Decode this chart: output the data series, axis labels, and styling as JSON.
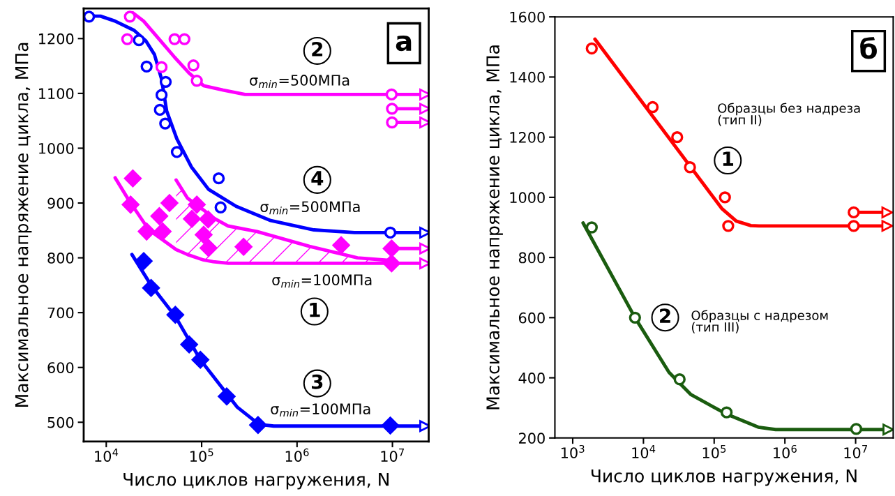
{
  "chart_data": [
    {
      "type": "line",
      "title": "а",
      "xlabel": "Число циклов нагружения, N",
      "ylabel": "Максимальное напряжение цикла, МПа",
      "log": "x",
      "xlim": [
        5800,
        24000000
      ],
      "ylim": [
        465,
        1255
      ],
      "xticks": [
        {
          "value": 10000,
          "label": "10$^{4}$"
        },
        {
          "value": 100000,
          "label": "10$^{5}$"
        },
        {
          "value": 1000000,
          "label": "10$^{6}$"
        },
        {
          "value": 10000000,
          "label": "10$^{7}$"
        }
      ],
      "yticks": [
        500,
        600,
        700,
        800,
        900,
        1000,
        1100,
        1200
      ],
      "series": [
        {
          "type": "line",
          "color": "#0000ff",
          "x": [
            6600,
            8700,
            12300,
            19600,
            26000,
            32000,
            38000,
            43000,
            55000,
            78000,
            118000,
            230000,
            530000,
            1500000,
            4000000,
            22000000
          ],
          "values": [
            1241,
            1241,
            1232,
            1215,
            1196,
            1171,
            1126,
            1068,
            1017,
            966,
            925,
            894,
            868,
            851,
            846,
            846
          ]
        },
        {
          "type": "scatter",
          "marker": "circle",
          "color": "#0000ff",
          "x": [
            6600,
            22000,
            26500,
            42000,
            38000,
            36500,
            41500,
            55000,
            151000,
            158000,
            9500000
          ],
          "values": [
            1240,
            1197,
            1149,
            1121,
            1097,
            1070,
            1045,
            993,
            945,
            892,
            846
          ]
        },
        {
          "type": "line",
          "color": "#ff00ff",
          "x": [
            19000,
            24600,
            37000,
            52000,
            74000,
            105000,
            168000,
            285000,
            9700000,
            22000000
          ],
          "values": [
            1247,
            1232,
            1196,
            1166,
            1137,
            1114,
            1106,
            1098,
            1098,
            1098
          ]
        },
        {
          "type": "line",
          "color": "#ff00ff",
          "x": [
            9900000,
            22000000
          ],
          "values": [
            1072,
            1072
          ]
        },
        {
          "type": "line",
          "color": "#ff00ff",
          "x": [
            9900000,
            22000000
          ],
          "values": [
            1047,
            1047
          ]
        },
        {
          "type": "scatter",
          "marker": "circle",
          "color": "#ff00ff",
          "x": [
            17700,
            16600,
            52000,
            66000,
            38000,
            82000,
            89000,
            9800000,
            9900000,
            9900000
          ],
          "values": [
            1240,
            1199,
            1199,
            1199,
            1148,
            1151,
            1123,
            1098,
            1072,
            1047
          ]
        },
        {
          "color": "#ff00ff",
          "x": [
            54000,
            71000,
            105000,
            132000,
            190000,
            380000,
            1350000,
            4300000,
            9800000
          ],
          "values": [
            942,
            909,
            887,
            873,
            858,
            848,
            821,
            800,
            795
          ]
        },
        {
          "color": "#ff00ff",
          "x": [
            12400,
            17400,
            28000,
            54000,
            71000,
            105000,
            132000,
            190000,
            380000,
            1350000,
            4300000,
            9800000,
            22000000
          ],
          "values": [
            946,
            904,
            851,
            815,
            806,
            796,
            793,
            790,
            790,
            790,
            790,
            790,
            790
          ]
        },
        {
          "type": "line",
          "color": "#ff00ff",
          "x": [
            9800000,
            22000000
          ],
          "values": [
            817,
            817
          ]
        },
        {
          "type": "scatter",
          "marker": "diamond",
          "color": "#ff00ff",
          "x": [
            19000,
            18000,
            26500,
            36000,
            39000,
            46000,
            79000,
            89000,
            117000,
            105000,
            118000,
            275000,
            2900000,
            9800000,
            9800000
          ],
          "values": [
            945,
            897,
            848,
            876,
            848,
            900,
            871,
            897,
            870,
            842,
            818,
            820,
            823,
            817,
            790
          ]
        },
        {
          "type": "line",
          "color": "#0000ff",
          "x": [
            18600,
            29500,
            53000,
            97000,
            235000,
            400000,
            570000,
            9500000,
            22000000
          ],
          "values": [
            806,
            750,
            693,
            614,
            528,
            496,
            493,
            493,
            493
          ]
        },
        {
          "type": "scatter",
          "marker": "diamond",
          "color": "#0000ff",
          "x": [
            24700,
            29500,
            53000,
            74000,
            97000,
            183000,
            390000,
            9500000
          ],
          "values": [
            794,
            745,
            696,
            642,
            614,
            547,
            495,
            494
          ]
        }
      ],
      "annotations": [
        "2",
        "σ$_{min}$=500МПа",
        "4",
        "σ$_{min}$=500МПа",
        "σ$_{min}$=100МПа",
        "1",
        "3",
        "σ$_{min}$=100МПа"
      ]
    },
    {
      "type": "line",
      "title": "б",
      "xlabel": "Число циклов нагружения, N",
      "ylabel": "Максимальное напряжение цикла, МПа",
      "log": "x",
      "xlim": [
        560,
        34000000
      ],
      "ylim": [
        200,
        1600
      ],
      "xticks": [
        {
          "value": 1000,
          "label": "10$^{3}$"
        },
        {
          "value": 10000,
          "label": "10$^{4}$"
        },
        {
          "value": 100000,
          "label": "10$^{5}$"
        },
        {
          "value": 1000000,
          "label": "10$^{6}$"
        },
        {
          "value": 10000000,
          "label": "10$^{7}$"
        }
      ],
      "yticks": [
        200,
        400,
        600,
        800,
        1000,
        1200,
        1400,
        1600
      ],
      "series": [
        {
          "type": "line",
          "color": "#ff0000",
          "x": [
            2060,
            128000,
            205000,
            330000,
            430000,
            9400000,
            28000000
          ],
          "values": [
            1526,
            963,
            921,
            906,
            905,
            905,
            905
          ]
        },
        {
          "type": "line",
          "color": "#ff0000",
          "x": [
            9400000,
            28000000
          ],
          "values": [
            950,
            950
          ]
        },
        {
          "type": "scatter",
          "marker": "circle",
          "color": "#ff0000",
          "x": [
            1860,
            13500,
            30000,
            45500,
            142000,
            158000,
            9400000,
            9400000
          ],
          "values": [
            1495,
            1300,
            1200,
            1100,
            1000,
            905,
            950,
            905
          ]
        },
        {
          "type": "line",
          "color": "#1a5c0f",
          "x": [
            1400,
            7600,
            23000,
            47000,
            145000,
            420000,
            740000,
            10200000,
            29000000
          ],
          "values": [
            915,
            600,
            418,
            344,
            281,
            236,
            228,
            228,
            228
          ]
        },
        {
          "type": "scatter",
          "marker": "circle",
          "color": "#1a5c0f",
          "x": [
            1860,
            7600,
            32500,
            150000,
            10200000
          ],
          "values": [
            900,
            600,
            395,
            285,
            230
          ]
        }
      ],
      "annotations": [
        "Образцы без надреза\n(тип II)",
        "1",
        "2",
        "Образцы с надрезом\n(тип III)"
      ]
    }
  ]
}
